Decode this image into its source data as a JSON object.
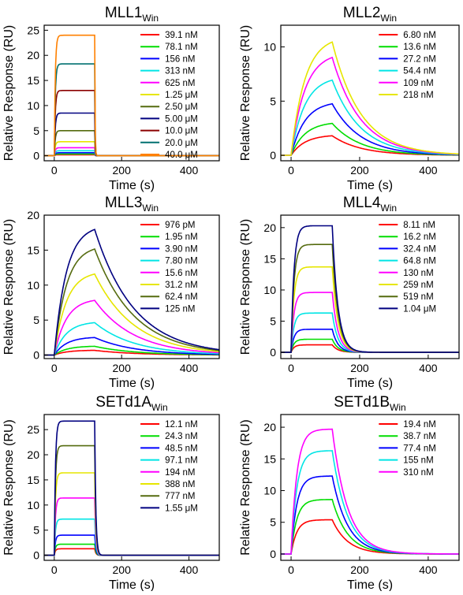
{
  "chart_data": [
    {
      "type": "line",
      "title": "MLL1",
      "title_sub": "Win",
      "xlabel": "Time (s)",
      "ylabel": "Relative Response (RU)",
      "xlim": [
        -30,
        490
      ],
      "ylim": [
        -1,
        26
      ],
      "xticks": [
        0,
        200,
        400
      ],
      "yticks": [
        0,
        5,
        10,
        15,
        20,
        25
      ],
      "grid": false,
      "legend_position": "top-right",
      "kinetics": {
        "inject_end": 120,
        "ka": 0.35,
        "kd": 0.9
      },
      "series": [
        {
          "name": "39.1 nM",
          "color": "#ff0000",
          "plateau": 0.2
        },
        {
          "name": "78.1 nM",
          "color": "#00dd00",
          "plateau": 0.35
        },
        {
          "name": "156 nM",
          "color": "#0000ff",
          "plateau": 0.6
        },
        {
          "name": "313 nM",
          "color": "#00e5e5",
          "plateau": 1.0
        },
        {
          "name": "625 nM",
          "color": "#ff00ff",
          "plateau": 1.6
        },
        {
          "name": "1.25 μM",
          "color": "#e6e600",
          "plateau": 2.8
        },
        {
          "name": "2.50 μM",
          "color": "#556b0f",
          "plateau": 5.0
        },
        {
          "name": "5.00 μM",
          "color": "#000080",
          "plateau": 8.5
        },
        {
          "name": "10.0 μM",
          "color": "#8b0000",
          "plateau": 13.0
        },
        {
          "name": "20.0 μM",
          "color": "#007070",
          "plateau": 18.3
        },
        {
          "name": "40.0 μM",
          "color": "#ff8000",
          "plateau": 24.0
        }
      ]
    },
    {
      "type": "line",
      "title": "MLL2",
      "title_sub": "Win",
      "xlabel": "Time (s)",
      "ylabel": "Relative Response (RU)",
      "xlim": [
        -30,
        490
      ],
      "ylim": [
        -0.5,
        12
      ],
      "xticks": [
        0,
        200,
        400
      ],
      "yticks": [
        0,
        5,
        10
      ],
      "grid": false,
      "legend_position": "top-right",
      "kinetics": {
        "inject_end": 120,
        "ka": 0.025,
        "kd": 0.012
      },
      "series": [
        {
          "name": "6.80 nM",
          "color": "#ff0000",
          "plateau": 1.9
        },
        {
          "name": "13.6 nM",
          "color": "#00dd00",
          "plateau": 3.1
        },
        {
          "name": "27.2 nM",
          "color": "#0000ff",
          "plateau": 5.0
        },
        {
          "name": "54.4 nM",
          "color": "#00e5e5",
          "plateau": 7.3
        },
        {
          "name": "109 nM",
          "color": "#ff00ff",
          "plateau": 9.5
        },
        {
          "name": "218 nM",
          "color": "#e6e600",
          "plateau": 11.0
        }
      ]
    },
    {
      "type": "line",
      "title": "MLL3",
      "title_sub": "Win",
      "xlabel": "Time (s)",
      "ylabel": "Relative Response (RU)",
      "xlim": [
        -30,
        490
      ],
      "ylim": [
        -0.5,
        20
      ],
      "xticks": [
        0,
        200,
        400
      ],
      "yticks": [
        0,
        5,
        10,
        15,
        20
      ],
      "grid": false,
      "legend_position": "top-right",
      "kinetics": {
        "inject_end": 120,
        "ka": 0.028,
        "kd": 0.0085
      },
      "series": [
        {
          "name": "976 pM",
          "color": "#ff0000",
          "plateau": 0.7
        },
        {
          "name": "1.95 nM",
          "color": "#00dd00",
          "plateau": 1.3
        },
        {
          "name": "3.90 nM",
          "color": "#0000ff",
          "plateau": 2.6
        },
        {
          "name": "7.80 nM",
          "color": "#00e5e5",
          "plateau": 4.8
        },
        {
          "name": "15.6 nM",
          "color": "#ff00ff",
          "plateau": 8.1
        },
        {
          "name": "31.2 nM",
          "color": "#e6e600",
          "plateau": 12.0
        },
        {
          "name": "62.4 nM",
          "color": "#556b0f",
          "plateau": 15.7
        },
        {
          "name": "125 nM",
          "color": "#000080",
          "plateau": 18.6
        }
      ]
    },
    {
      "type": "line",
      "title": "MLL4",
      "title_sub": "Win",
      "xlabel": "Time (s)",
      "ylabel": "Relative Response (RU)",
      "xlim": [
        -30,
        490
      ],
      "ylim": [
        -1,
        22
      ],
      "xticks": [
        0,
        200,
        400
      ],
      "yticks": [
        0,
        5,
        10,
        15,
        20
      ],
      "grid": false,
      "legend_position": "top-right",
      "kinetics": {
        "inject_end": 120,
        "ka": 0.12,
        "kd": 0.06
      },
      "series": [
        {
          "name": "8.11 nM",
          "color": "#ff0000",
          "plateau": 1.2
        },
        {
          "name": "16.2 nM",
          "color": "#00dd00",
          "plateau": 2.1
        },
        {
          "name": "32.4 nM",
          "color": "#0000ff",
          "plateau": 3.7
        },
        {
          "name": "64.8 nM",
          "color": "#00e5e5",
          "plateau": 6.3
        },
        {
          "name": "130 nM",
          "color": "#ff00ff",
          "plateau": 9.6
        },
        {
          "name": "259 nM",
          "color": "#e6e600",
          "plateau": 13.7
        },
        {
          "name": "519 nM",
          "color": "#556b0f",
          "plateau": 17.3
        },
        {
          "name": "1.04 μM",
          "color": "#000080",
          "plateau": 20.3
        }
      ]
    },
    {
      "type": "line",
      "title": "SETd1A",
      "title_sub": "Win",
      "xlabel": "Time (s)",
      "ylabel": "Relative Response (RU)",
      "xlim": [
        -30,
        490
      ],
      "ylim": [
        -1,
        28
      ],
      "xticks": [
        0,
        200,
        400
      ],
      "yticks": [
        0,
        5,
        10,
        15,
        20,
        25
      ],
      "grid": false,
      "legend_position": "top-right",
      "kinetics": {
        "inject_end": 120,
        "ka": 0.3,
        "kd": 0.3
      },
      "series": [
        {
          "name": "12.1 nM",
          "color": "#ff0000",
          "plateau": 1.3
        },
        {
          "name": "24.3 nM",
          "color": "#00dd00",
          "plateau": 2.2
        },
        {
          "name": "48.5 nM",
          "color": "#0000ff",
          "plateau": 4.0
        },
        {
          "name": "97.1 nM",
          "color": "#00e5e5",
          "plateau": 7.2
        },
        {
          "name": "194 nM",
          "color": "#ff00ff",
          "plateau": 11.4
        },
        {
          "name": "388 nM",
          "color": "#e6e600",
          "plateau": 16.4
        },
        {
          "name": "777 nM",
          "color": "#556b0f",
          "plateau": 21.8
        },
        {
          "name": "1.55 μM",
          "color": "#000080",
          "plateau": 26.7
        }
      ]
    },
    {
      "type": "line",
      "title": "SETd1B",
      "title_sub": "Win",
      "xlabel": "Time (s)",
      "ylabel": "Relative Response (RU)",
      "xlim": [
        -30,
        490
      ],
      "ylim": [
        -1,
        22
      ],
      "xticks": [
        0,
        200,
        400
      ],
      "yticks": [
        0,
        5,
        10,
        15,
        20
      ],
      "grid": false,
      "legend_position": "top-right",
      "kinetics": {
        "inject_end": 120,
        "ka": 0.06,
        "kd": 0.022
      },
      "series": [
        {
          "name": "19.4 nM",
          "color": "#ff0000",
          "plateau": 5.4
        },
        {
          "name": "38.7 nM",
          "color": "#00dd00",
          "plateau": 8.6
        },
        {
          "name": "77.4 nM",
          "color": "#0000ff",
          "plateau": 12.3
        },
        {
          "name": "155 nM",
          "color": "#00e5e5",
          "plateau": 16.3
        },
        {
          "name": "310 nM",
          "color": "#ff00ff",
          "plateau": 19.7
        }
      ]
    }
  ]
}
